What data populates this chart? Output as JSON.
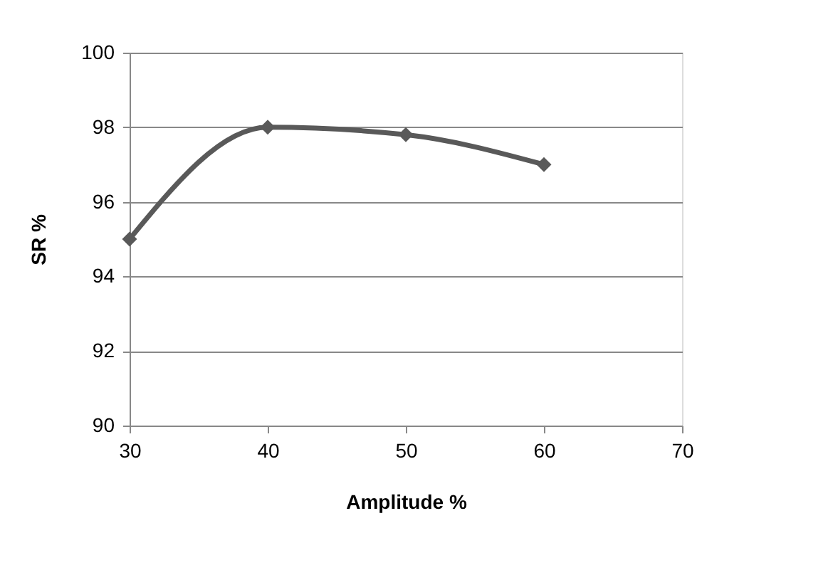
{
  "chart_data": {
    "type": "line",
    "xlabel": "Amplitude %",
    "ylabel": "SR %",
    "x": [
      30,
      40,
      50,
      60
    ],
    "series": [
      {
        "color": "#595959",
        "values": [
          95,
          98,
          97.8,
          97
        ]
      }
    ],
    "xlim": [
      30,
      70
    ],
    "xticks": [
      30,
      40,
      50,
      60,
      70
    ],
    "ylim": [
      90,
      100
    ],
    "yticks": [
      90,
      92,
      94,
      96,
      98,
      100
    ],
    "grid": "y",
    "marker": "diamond",
    "line_style": "solid"
  }
}
